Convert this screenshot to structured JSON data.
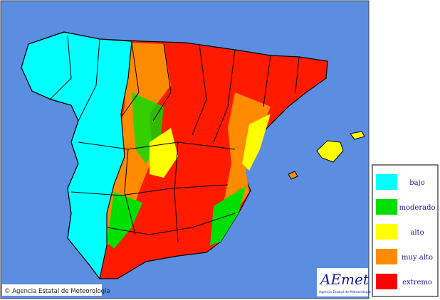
{
  "legend": {
    "items": [
      {
        "label": "bajo",
        "color": "#00ffff"
      },
      {
        "label": "moderado",
        "color": "#00e000"
      },
      {
        "label": "alto",
        "color": "#ffff00"
      },
      {
        "label": "muy alto",
        "color": "#ff8c00"
      },
      {
        "label": "extremo",
        "color": "#ff0000"
      }
    ]
  },
  "footer": {
    "copyright": "© Agencia Estatal de Meteorología"
  },
  "logo": {
    "name": "AEmet",
    "subtitle": "Agencia Estatal de Meteorología"
  }
}
